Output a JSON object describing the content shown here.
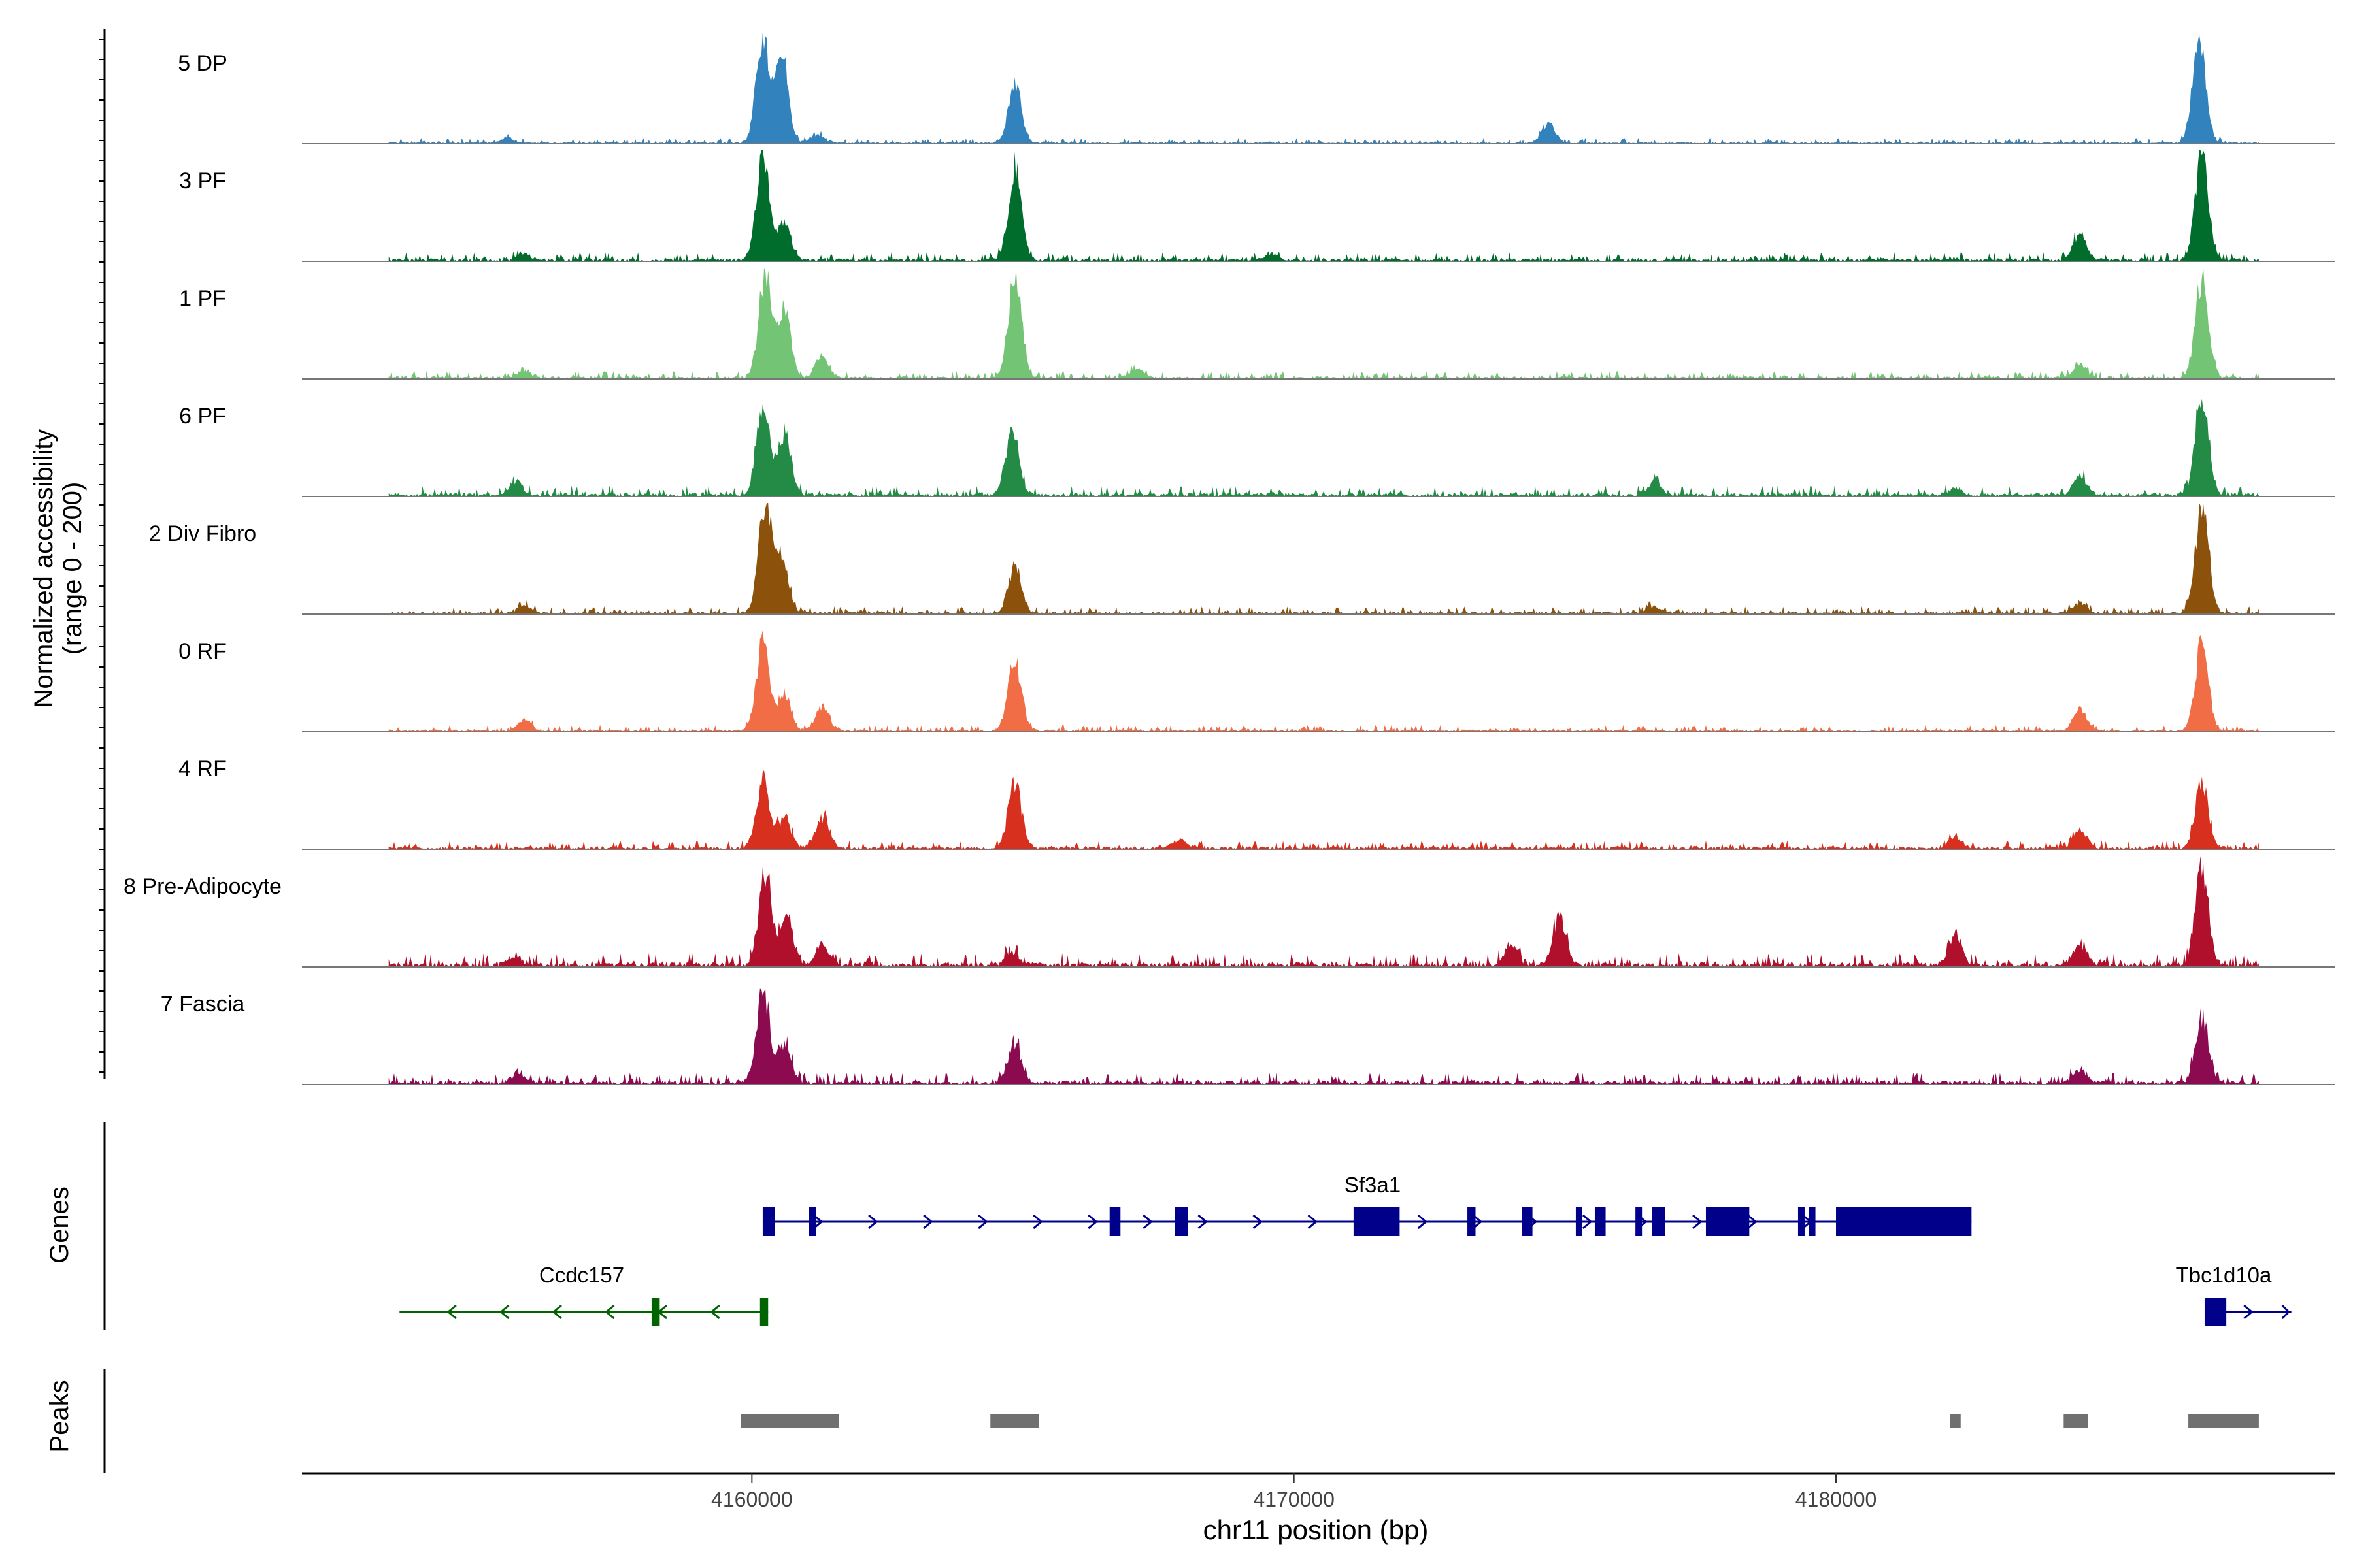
{
  "chart_data": {
    "type": "area",
    "title": "",
    "xlabel": "chr11 position (bp)",
    "ylabel": "Normalized accessibility",
    "ylabel_range": "(range 0 - 200)",
    "xlim": [
      4151700,
      4189200
    ],
    "x_ticks": [
      4160000,
      4170000,
      4180000
    ],
    "x_tick_labels": [
      "4160000",
      "4170000",
      "4180000"
    ],
    "ylim": [
      0,
      200
    ],
    "baseline_color": "#777777",
    "tracks": [
      {
        "name": "5 DP",
        "color": "#3182bd",
        "peaks": [
          [
            4160200,
            190
          ],
          [
            4160550,
            160
          ],
          [
            4164850,
            110
          ],
          [
            4174700,
            35
          ],
          [
            4186700,
            195
          ],
          [
            4155500,
            10
          ],
          [
            4161200,
            15
          ]
        ],
        "noise": 6
      },
      {
        "name": "3 PF",
        "color": "#006d2c",
        "peaks": [
          [
            4160200,
            195
          ],
          [
            4160600,
            70
          ],
          [
            4164850,
            165
          ],
          [
            4184500,
            50
          ],
          [
            4186750,
            190
          ],
          [
            4155800,
            12
          ],
          [
            4169600,
            12
          ]
        ],
        "noise": 9
      },
      {
        "name": "1 PF",
        "color": "#74c476",
        "peaks": [
          [
            4160250,
            185
          ],
          [
            4160600,
            120
          ],
          [
            4161300,
            40
          ],
          [
            4164850,
            200
          ],
          [
            4184500,
            25
          ],
          [
            4186750,
            185
          ],
          [
            4155800,
            12
          ],
          [
            4167100,
            15
          ]
        ],
        "noise": 8
      },
      {
        "name": "6 PF",
        "color": "#238b45",
        "peaks": [
          [
            4160200,
            165
          ],
          [
            4160600,
            115
          ],
          [
            4164800,
            115
          ],
          [
            4184500,
            35
          ],
          [
            4186750,
            195
          ],
          [
            4155650,
            25
          ],
          [
            4176650,
            25
          ],
          [
            4182200,
            12
          ]
        ],
        "noise": 11
      },
      {
        "name": "2 Div Fibro",
        "color": "#8c510a",
        "peaks": [
          [
            4160250,
            200
          ],
          [
            4160550,
            95
          ],
          [
            4164850,
            85
          ],
          [
            4184500,
            20
          ],
          [
            4186750,
            200
          ],
          [
            4155800,
            12
          ],
          [
            4176650,
            12
          ]
        ],
        "noise": 8
      },
      {
        "name": "0 RF",
        "color": "#f16d46",
        "peaks": [
          [
            4160200,
            160
          ],
          [
            4160600,
            70
          ],
          [
            4161300,
            45
          ],
          [
            4164850,
            130
          ],
          [
            4184500,
            40
          ],
          [
            4186750,
            160
          ],
          [
            4155800,
            20
          ]
        ],
        "noise": 7
      },
      {
        "name": "4 RF",
        "color": "#d7301f",
        "peaks": [
          [
            4160200,
            125
          ],
          [
            4160600,
            55
          ],
          [
            4161300,
            55
          ],
          [
            4164850,
            120
          ],
          [
            4184500,
            35
          ],
          [
            4186750,
            120
          ],
          [
            4182200,
            20
          ],
          [
            4167900,
            15
          ]
        ],
        "noise": 9
      },
      {
        "name": "8 Pre-Adipocyte",
        "color": "#b0102b",
        "peaks": [
          [
            4160250,
            170
          ],
          [
            4160650,
            80
          ],
          [
            4161300,
            40
          ],
          [
            4164800,
            20
          ],
          [
            4174000,
            35
          ],
          [
            4174900,
            85
          ],
          [
            4182200,
            55
          ],
          [
            4184500,
            40
          ],
          [
            4186750,
            175
          ],
          [
            4155600,
            15
          ]
        ],
        "noise": 14
      },
      {
        "name": "7 Fascia",
        "color": "#8b0a50",
        "peaks": [
          [
            4160200,
            160
          ],
          [
            4160600,
            70
          ],
          [
            4164850,
            70
          ],
          [
            4184500,
            25
          ],
          [
            4186750,
            120
          ],
          [
            4155700,
            18
          ]
        ],
        "noise": 12
      }
    ],
    "genes_label": "Genes",
    "genes": [
      {
        "name": "Sf3a1",
        "strand": "+",
        "color": "#00008b",
        "start": 4160200,
        "end": 4182500,
        "exons": [
          [
            4160200,
            4160420
          ],
          [
            4161050,
            4161180
          ],
          [
            4166600,
            4166800
          ],
          [
            4167800,
            4168050
          ],
          [
            4171100,
            4171950
          ],
          [
            4173200,
            4173350
          ],
          [
            4174200,
            4174400
          ],
          [
            4175200,
            4175300
          ],
          [
            4175550,
            4175750
          ],
          [
            4176300,
            4176400
          ],
          [
            4176600,
            4176850
          ],
          [
            4177600,
            4178400
          ],
          [
            4179300,
            4179350
          ],
          [
            4179500,
            4179550
          ],
          [
            4180000,
            4182500
          ]
        ],
        "row": 0
      },
      {
        "name": "Ccdc157",
        "strand": "-",
        "color": "#006400",
        "start": 4153500,
        "end": 4160300,
        "exons": [
          [
            4158150,
            4158300
          ],
          [
            4160150,
            4160300
          ]
        ],
        "row": 1
      },
      {
        "name": "Tbc1d10a",
        "strand": "+",
        "color": "#00008b",
        "start": 4186800,
        "end": 4188400,
        "exons": [
          [
            4186800,
            4187200
          ]
        ],
        "row": 1
      }
    ],
    "peaks_label": "Peaks",
    "peak_color": "#707070",
    "peak_regions": [
      [
        4159800,
        4161600
      ],
      [
        4164400,
        4165300
      ],
      [
        4182100,
        4182300
      ],
      [
        4184200,
        4184650
      ],
      [
        4186500,
        4187800
      ]
    ]
  }
}
